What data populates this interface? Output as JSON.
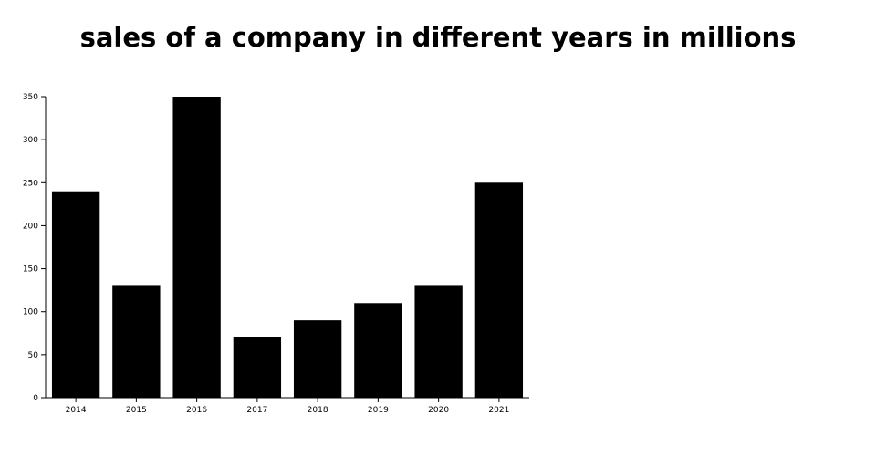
{
  "chart_data": {
    "type": "bar",
    "title": "sales of a company in different years in millions",
    "categories": [
      "2014",
      "2015",
      "2016",
      "2017",
      "2018",
      "2019",
      "2020",
      "2021"
    ],
    "values": [
      240,
      130,
      350,
      70,
      90,
      110,
      130,
      250
    ],
    "xlabel": "",
    "ylabel": "",
    "ylim": [
      0,
      350
    ],
    "yticks": [
      0,
      50,
      100,
      150,
      200,
      250,
      300,
      350
    ],
    "grid": false,
    "bar_color": "#000000"
  }
}
